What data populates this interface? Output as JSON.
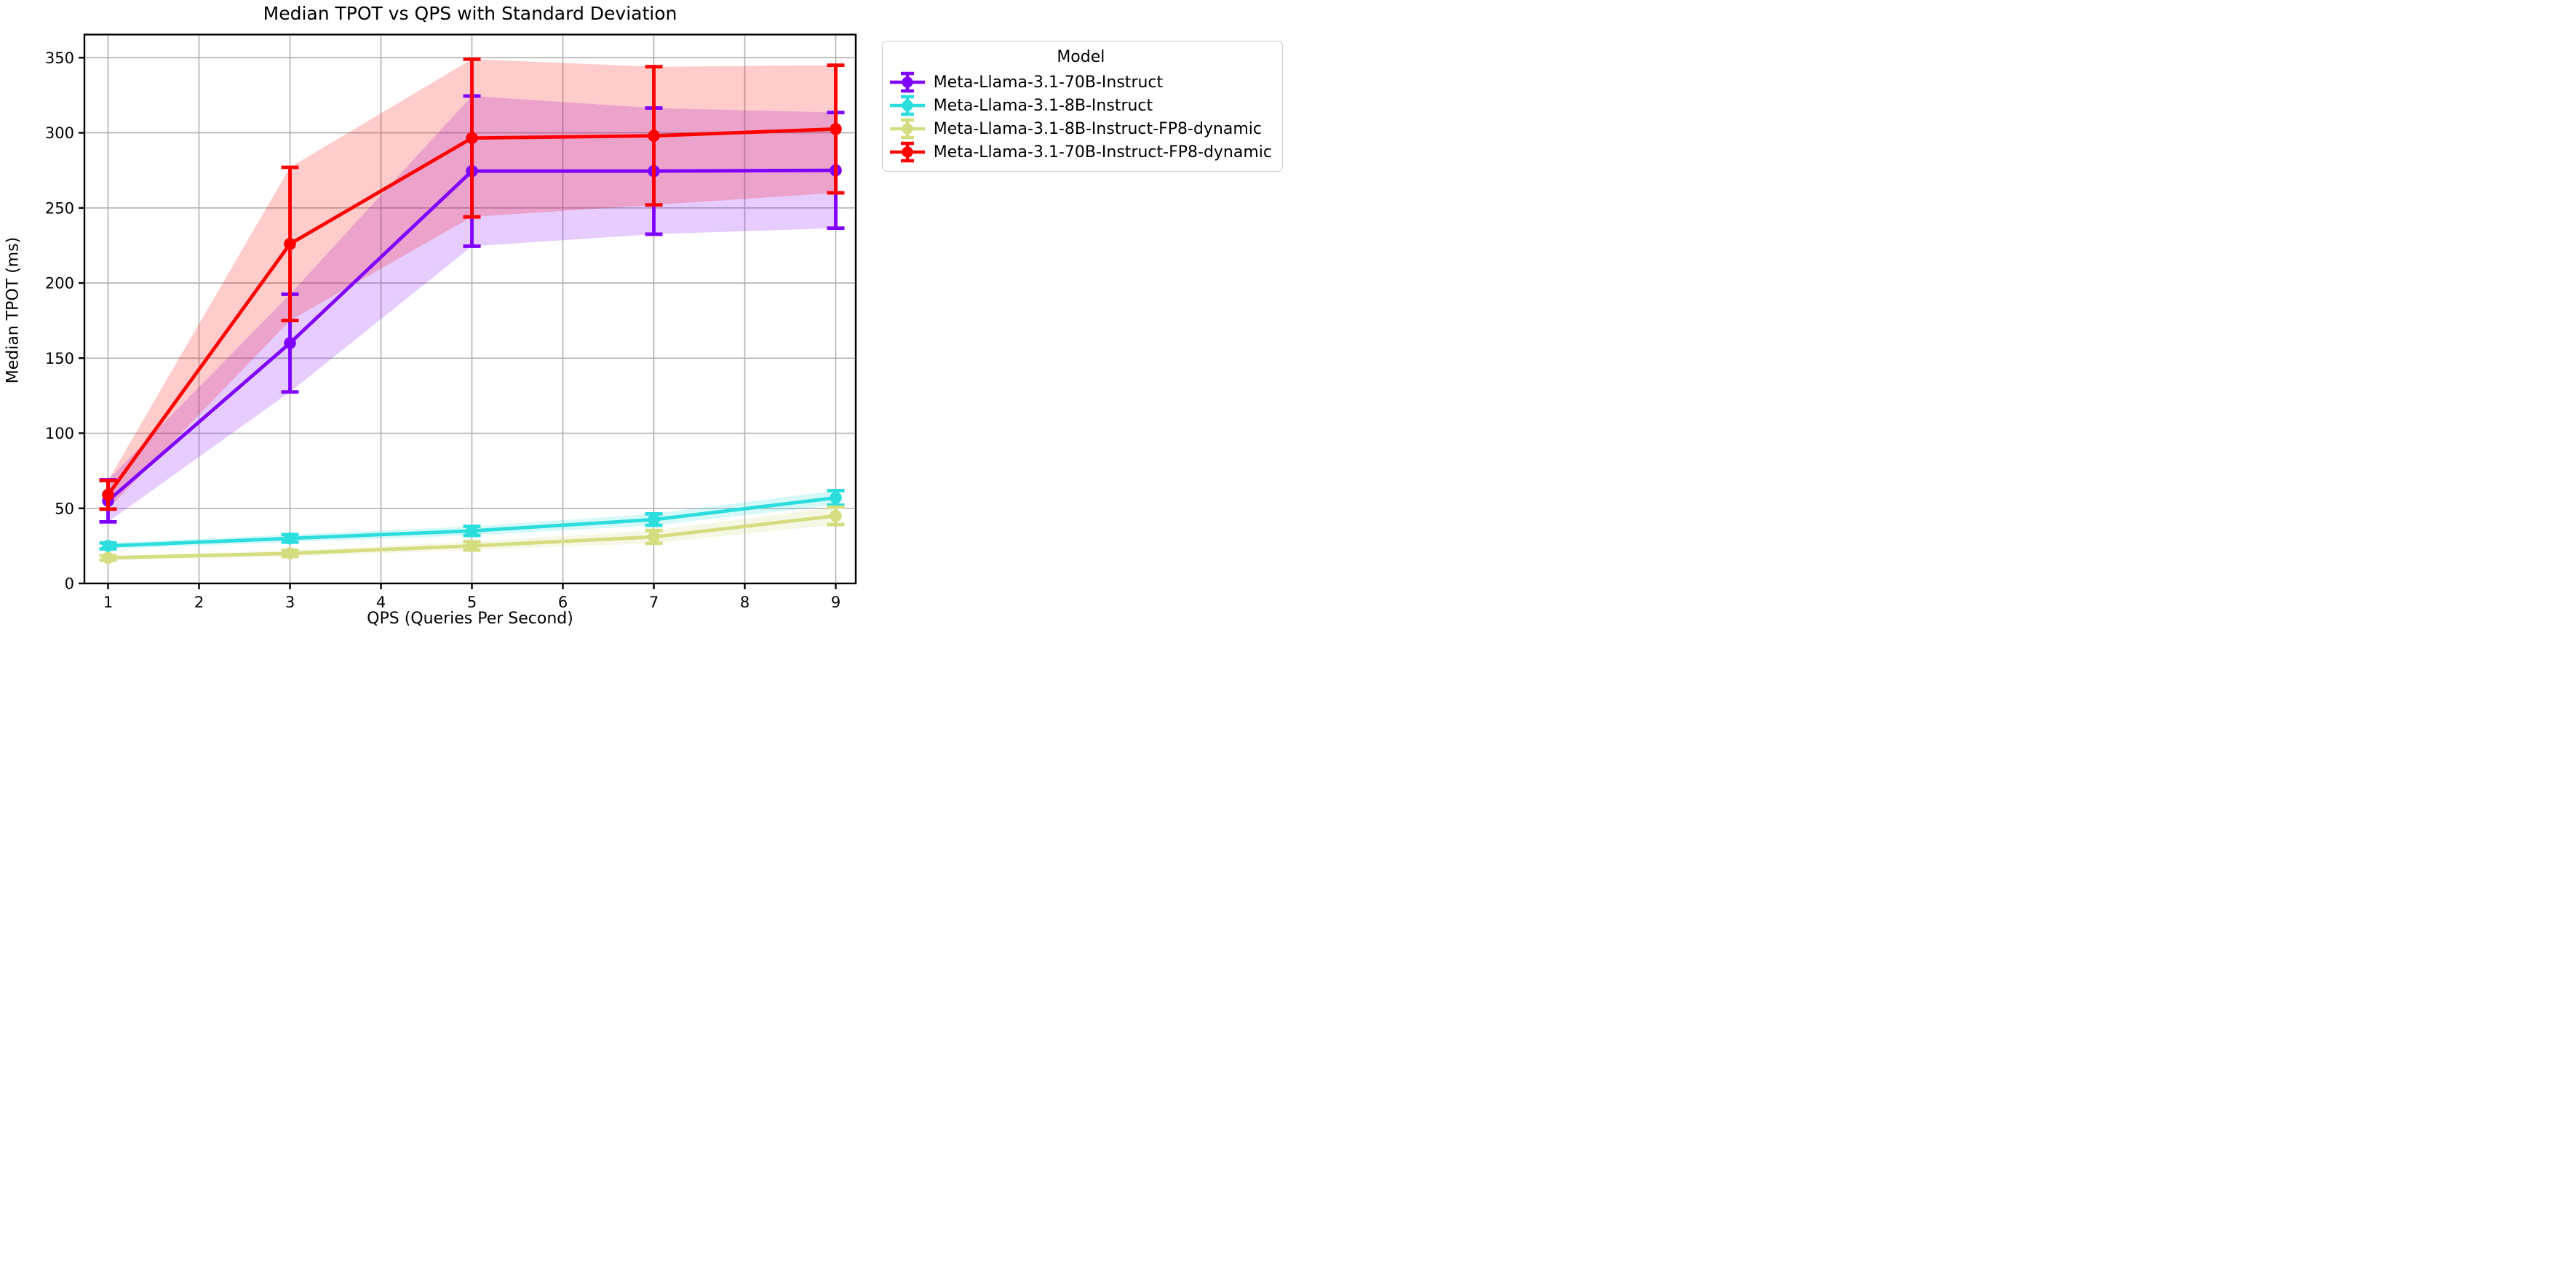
{
  "figure": {
    "title": "Median TPOT vs QPS with Standard Deviation",
    "xlabel": "QPS (Queries Per Second)",
    "ylabel": "Median TPOT (ms)"
  },
  "legend": {
    "title": "Model",
    "position": "outside-top-right"
  },
  "chart_data": {
    "type": "line",
    "title": "Median TPOT vs QPS with Standard Deviation",
    "xlabel": "QPS (Queries Per Second)",
    "ylabel": "Median TPOT (ms)",
    "grid": true,
    "grid_color": "#b0b0b0",
    "band_style": "mean ± 1 std shaded, alpha 0.2, with error bars and circle markers",
    "x": [
      1,
      3,
      5,
      7,
      9
    ],
    "x_ticks": [
      1,
      2,
      3,
      4,
      5,
      6,
      7,
      8,
      9
    ],
    "y_ticks": [
      0,
      50,
      100,
      150,
      200,
      250,
      300,
      350
    ],
    "xlim": [
      0.74,
      9.22
    ],
    "ylim": [
      0,
      365.4
    ],
    "series": [
      {
        "name": "Meta-Llama-3.1-70B-Instruct",
        "color": "#8000FF",
        "mean": [
          55,
          160,
          274.5,
          274.5,
          275
        ],
        "std": [
          14,
          32.5,
          50,
          42,
          38.5
        ]
      },
      {
        "name": "Meta-Llama-3.1-8B-Instruct",
        "color": "#2BDDDD",
        "mean": [
          25,
          30,
          35,
          42.5,
          57
        ],
        "std": [
          2,
          2.5,
          3,
          3.8,
          4.8
        ]
      },
      {
        "name": "Meta-Llama-3.1-8B-Instruct-FP8-dynamic",
        "color": "#D4DD80",
        "mean": [
          17,
          20,
          25,
          31,
          45
        ],
        "std": [
          1.5,
          2,
          2.8,
          4.3,
          5.8
        ]
      },
      {
        "name": "Meta-Llama-3.1-70B-Instruct-FP8-dynamic",
        "color": "#FF0000",
        "mean": [
          59,
          226,
          296.5,
          298,
          302.5
        ],
        "std": [
          9.5,
          51,
          52.5,
          46,
          42.5
        ]
      }
    ]
  }
}
